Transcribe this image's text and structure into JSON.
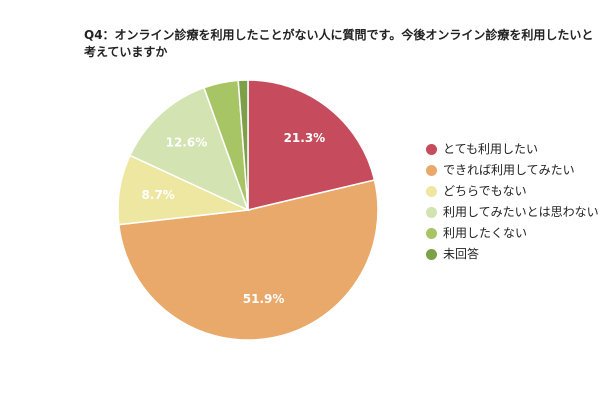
{
  "chart_data": {
    "type": "pie",
    "title": "Q4：オンライン診療を利用したことがない人に質問です。今後オンライン診療を利用したいと考えていますか",
    "categories": [
      "とても利用したい",
      "できれば利用してみたい",
      "どちらでもない",
      "利用してみたいとは思わない",
      "利用したくない",
      "未回答"
    ],
    "values": [
      21.3,
      51.9,
      8.7,
      12.6,
      4.3,
      1.2
    ],
    "data_labels": [
      "21.3%",
      "51.9%",
      "8.7%",
      "12.6%",
      "",
      ""
    ],
    "colors": [
      "#c64b5c",
      "#e8a96a",
      "#ede7a1",
      "#d3e3b2",
      "#a8c566",
      "#7ca048"
    ],
    "start": "12 o'clock",
    "direction": "clockwise",
    "legend_position": "right"
  }
}
